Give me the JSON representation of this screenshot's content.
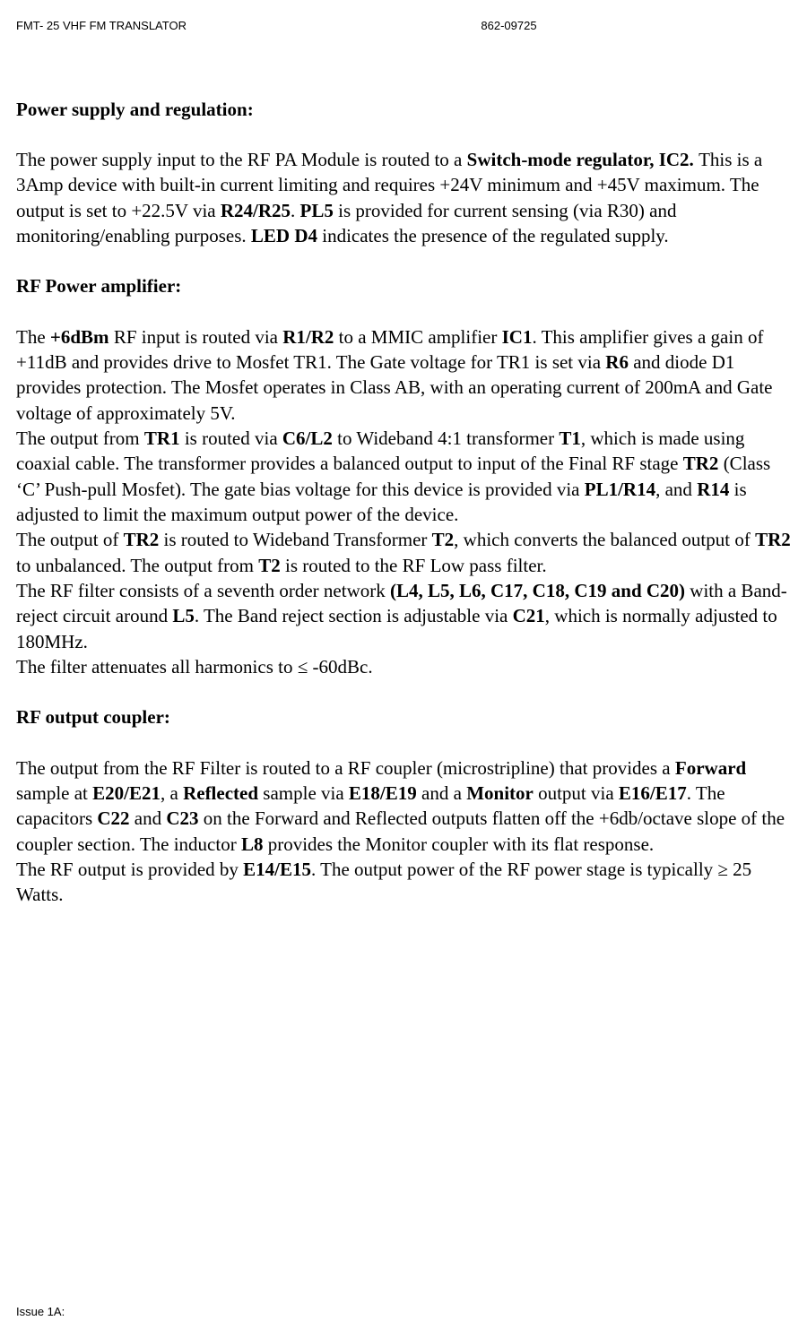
{
  "header": {
    "left": "FMT- 25 VHF FM TRANSLATOR",
    "right": "862-09725"
  },
  "sections": {
    "power_supply": {
      "heading": "Power supply and regulation:",
      "p1_a": "The power supply input to the RF PA Module is routed to a ",
      "p1_b": "Switch-mode regulator, IC2. ",
      "p1_c": "This is a 3Amp device with built-in current limiting and requires +24V minimum and +45V maximum. The output is set to +22.5V via ",
      "p1_d": "R24/R25",
      "p1_e": ". ",
      "p1_f": "PL5",
      "p1_g": " is provided for current sensing (via R30) and monitoring/enabling purposes. ",
      "p1_h": "LED D4",
      "p1_i": " indicates the presence of the regulated supply."
    },
    "rf_amp": {
      "heading": "RF Power amplifier:",
      "p1_a": "The ",
      "p1_b": "+6dBm",
      "p1_c": " RF input is routed via ",
      "p1_d": "R1/R2",
      "p1_e": " to a MMIC amplifier ",
      "p1_f": "IC1",
      "p1_g": ". This amplifier gives a gain of +11dB and provides drive to Mosfet TR1. The Gate voltage for TR1 is set via ",
      "p1_h": "R6",
      "p1_i": " and diode D1 provides protection. The Mosfet operates in Class AB, with an operating current of 200mA and Gate voltage of approximately 5V.",
      "p2_a": "The output from ",
      "p2_b": "TR1",
      "p2_c": " is routed via ",
      "p2_d": "C6/L2",
      "p2_e": " to Wideband 4:1 transformer ",
      "p2_f": "T1",
      "p2_g": ", which is made using coaxial cable. The transformer provides a balanced output to input of the Final RF stage ",
      "p2_h": "TR2",
      "p2_i": " (Class ‘C’ Push-pull Mosfet). The gate bias voltage for this device is provided via ",
      "p2_j": "PL1/R14",
      "p2_k": ", and ",
      "p2_l": "R14",
      "p2_m": " is adjusted to limit the maximum output power of the device.",
      "p3_a": "The output of ",
      "p3_b": "TR2",
      "p3_c": " is routed to Wideband Transformer ",
      "p3_d": "T2",
      "p3_e": ", which converts the balanced output of ",
      "p3_f": "TR2",
      "p3_g": " to unbalanced. The output from ",
      "p3_h": "T2",
      "p3_i": " is routed to the RF Low pass filter.",
      "p4_a": "The RF filter consists of a seventh order network ",
      "p4_b": "(L4, L5, L6, C17, C18, C19 and C20)",
      "p4_c": " with a Band-reject circuit around ",
      "p4_d": "L5",
      "p4_e": ". The Band reject section is adjustable via ",
      "p4_f": "C21",
      "p4_g": ", which is normally adjusted to 180MHz.",
      "p5_a": "The filter attenuates all harmonics to ≤ -60dBc."
    },
    "rf_coupler": {
      "heading": "RF output coupler:",
      "p1_a": "The output from the RF Filter is routed to a RF coupler (microstripline) that provides a ",
      "p1_b": "Forward",
      "p1_c": " sample at ",
      "p1_d": "E20/E21",
      "p1_e": ", a ",
      "p1_f": "Reflected",
      "p1_g": " sample via ",
      "p1_h": "E18/E19",
      "p1_i": " and a ",
      "p1_j": "Monitor",
      "p1_k": " output via ",
      "p1_l": "E16/E17",
      "p1_m": ". The capacitors ",
      "p1_n": "C22",
      "p1_o": " and ",
      "p1_p": "C23",
      "p1_q": " on the Forward and Reflected outputs flatten off the +6db/octave slope of the coupler section. The inductor ",
      "p1_r": "L8",
      "p1_s": " provides the Monitor coupler with its flat response.",
      "p2_a": "The RF output is provided by ",
      "p2_b": "E14/E15",
      "p2_c": ". The output power of the RF power stage is typically ≥ 25 Watts."
    }
  },
  "footer": "Issue 1A:"
}
